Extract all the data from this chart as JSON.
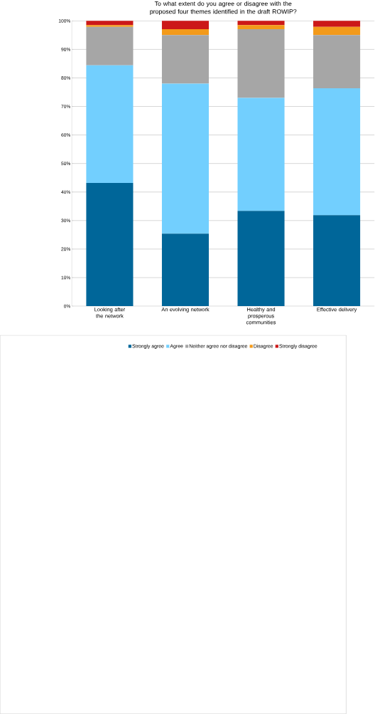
{
  "chart_data": {
    "type": "bar",
    "stacked": true,
    "title": "To what extent do you agree or disagree with the proposed four themes identified in the draft ROWIP?",
    "categories": [
      "Looking after the network",
      "An evolving network",
      "Healthy and prosperous communities",
      "Effective delivery"
    ],
    "series": [
      {
        "name": "Strongly agree",
        "color": "#006699",
        "values": [
          43.2,
          25.4,
          33.4,
          31.9
        ]
      },
      {
        "name": "Agree",
        "color": "#72cffe",
        "values": [
          41.2,
          52.6,
          39.6,
          44.5
        ]
      },
      {
        "name": "Neither agree nor disagree",
        "color": "#a6a6a6",
        "values": [
          13.5,
          17.0,
          24.1,
          18.6
        ]
      },
      {
        "name": "Disagree",
        "color": "#f39a1a",
        "values": [
          0.6,
          2.1,
          1.4,
          2.9
        ]
      },
      {
        "name": "Strongly disagree",
        "color": "#cc1818",
        "values": [
          1.5,
          2.9,
          1.5,
          2.1
        ]
      }
    ],
    "ylim": [
      0,
      100
    ],
    "yticks": [
      {
        "value": 0,
        "label": "0%"
      },
      {
        "value": 10,
        "label": "10%"
      },
      {
        "value": 20,
        "label": "20%"
      },
      {
        "value": 30,
        "label": "30%"
      },
      {
        "value": 40,
        "label": "40%"
      },
      {
        "value": 50,
        "label": "50%"
      },
      {
        "value": 60,
        "label": "60%"
      },
      {
        "value": 70,
        "label": "70%"
      },
      {
        "value": 80,
        "label": "80%"
      },
      {
        "value": 90,
        "label": "90%"
      },
      {
        "value": 100,
        "label": "100%"
      }
    ],
    "grid": "y",
    "legend": "bottom"
  }
}
